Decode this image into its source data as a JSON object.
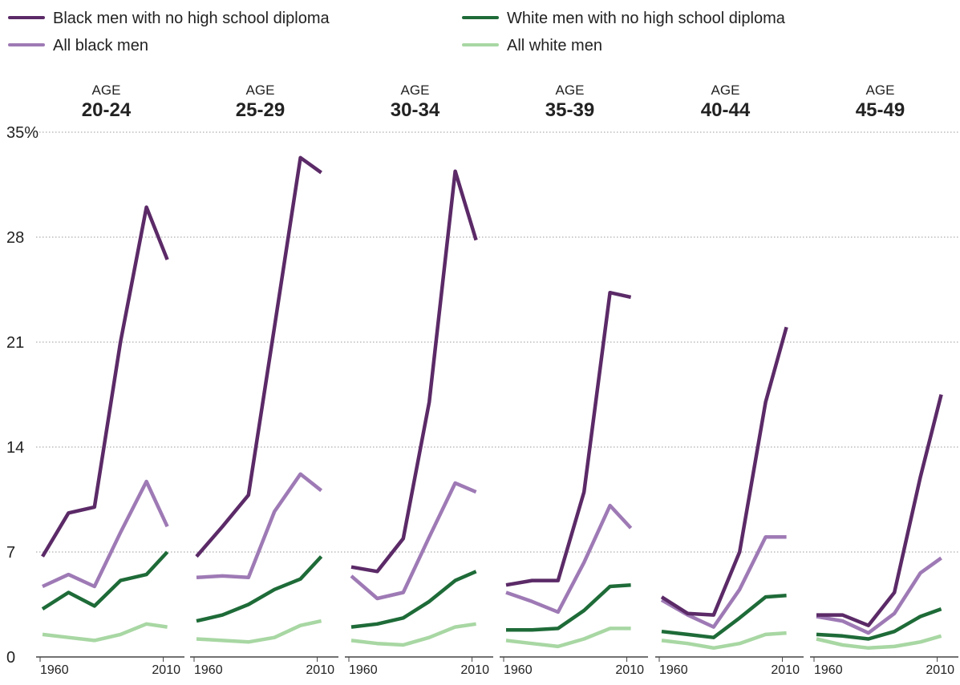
{
  "chart_data": {
    "type": "line",
    "legend": [
      {
        "label": "Black men with no high school diploma",
        "color": "#5b2a67"
      },
      {
        "label": "White men with no high school diploma",
        "color": "#1e6b38"
      },
      {
        "label": "All black men",
        "color": "#9e7ab5"
      },
      {
        "label": "All white men",
        "color": "#a8d7a3"
      }
    ],
    "legend_placement": "top",
    "y_ticks": [
      "35%",
      "28",
      "21",
      "14",
      "7",
      "0"
    ],
    "ylim": [
      0,
      35
    ],
    "xlim": [
      1960,
      2014
    ],
    "x_tick_labels": [
      "1960",
      "2010"
    ],
    "x": [
      1960,
      1970,
      1980,
      1990,
      2000,
      2008
    ],
    "grid": true,
    "age_label": "AGE",
    "panels": [
      {
        "age_range": "20-24",
        "series": [
          {
            "name": "Black men with no high school diploma",
            "color": "#5b2a67",
            "values": [
              6.7,
              9.6,
              10.0,
              21.0,
              30.0,
              26.5
            ]
          },
          {
            "name": "All black men",
            "color": "#9e7ab5",
            "values": [
              4.7,
              5.5,
              4.7,
              8.3,
              11.7,
              8.7
            ]
          },
          {
            "name": "White men with no high school diploma",
            "color": "#1e6b38",
            "values": [
              3.2,
              4.3,
              3.4,
              5.1,
              5.5,
              7.0
            ]
          },
          {
            "name": "All white men",
            "color": "#a8d7a3",
            "values": [
              1.5,
              1.3,
              1.1,
              1.5,
              2.2,
              2.0
            ]
          }
        ]
      },
      {
        "age_range": "25-29",
        "series": [
          {
            "name": "Black men with no high school diploma",
            "color": "#5b2a67",
            "values": [
              6.7,
              8.7,
              10.8,
              22.0,
              33.3,
              32.3
            ]
          },
          {
            "name": "All black men",
            "color": "#9e7ab5",
            "values": [
              5.3,
              5.4,
              5.3,
              9.7,
              12.2,
              11.1
            ]
          },
          {
            "name": "White men with no high school diploma",
            "color": "#1e6b38",
            "values": [
              2.4,
              2.8,
              3.5,
              4.5,
              5.2,
              6.7
            ]
          },
          {
            "name": "All white men",
            "color": "#a8d7a3",
            "values": [
              1.2,
              1.1,
              1.0,
              1.3,
              2.1,
              2.4
            ]
          }
        ]
      },
      {
        "age_range": "30-34",
        "series": [
          {
            "name": "Black men with no high school diploma",
            "color": "#5b2a67",
            "values": [
              6.0,
              5.7,
              7.9,
              17.0,
              32.4,
              27.8
            ]
          },
          {
            "name": "All black men",
            "color": "#9e7ab5",
            "values": [
              5.4,
              3.9,
              4.3,
              8.0,
              11.6,
              11.0
            ]
          },
          {
            "name": "White men with no high school diploma",
            "color": "#1e6b38",
            "values": [
              2.0,
              2.2,
              2.6,
              3.7,
              5.1,
              5.7
            ]
          },
          {
            "name": "All white men",
            "color": "#a8d7a3",
            "values": [
              1.1,
              0.9,
              0.8,
              1.3,
              2.0,
              2.2
            ]
          }
        ]
      },
      {
        "age_range": "35-39",
        "series": [
          {
            "name": "Black men with no high school diploma",
            "color": "#5b2a67",
            "values": [
              4.8,
              5.1,
              5.1,
              11.0,
              24.3,
              24.0
            ]
          },
          {
            "name": "All black men",
            "color": "#9e7ab5",
            "values": [
              4.3,
              3.7,
              3.0,
              6.3,
              10.1,
              8.6
            ]
          },
          {
            "name": "White men with no high school diploma",
            "color": "#1e6b38",
            "values": [
              1.8,
              1.8,
              1.9,
              3.1,
              4.7,
              4.8
            ]
          },
          {
            "name": "All white men",
            "color": "#a8d7a3",
            "values": [
              1.1,
              0.9,
              0.7,
              1.2,
              1.9,
              1.9
            ]
          }
        ]
      },
      {
        "age_range": "40-44",
        "series": [
          {
            "name": "Black men with no high school diploma",
            "color": "#5b2a67",
            "values": [
              4.0,
              2.9,
              2.8,
              7.0,
              17.0,
              22.0
            ]
          },
          {
            "name": "All black men",
            "color": "#9e7ab5",
            "values": [
              3.8,
              2.8,
              2.0,
              4.5,
              8.0,
              8.0
            ]
          },
          {
            "name": "White men with no high school diploma",
            "color": "#1e6b38",
            "values": [
              1.7,
              1.5,
              1.3,
              2.6,
              4.0,
              4.1
            ]
          },
          {
            "name": "All white men",
            "color": "#a8d7a3",
            "values": [
              1.1,
              0.9,
              0.6,
              0.9,
              1.5,
              1.6
            ]
          }
        ]
      },
      {
        "age_range": "45-49",
        "series": [
          {
            "name": "Black men with no high school diploma",
            "color": "#5b2a67",
            "values": [
              2.8,
              2.8,
              2.1,
              4.3,
              12.0,
              17.5
            ]
          },
          {
            "name": "All black men",
            "color": "#9e7ab5",
            "values": [
              2.7,
              2.4,
              1.6,
              2.9,
              5.6,
              6.6
            ]
          },
          {
            "name": "White men with no high school diploma",
            "color": "#1e6b38",
            "values": [
              1.5,
              1.4,
              1.2,
              1.7,
              2.7,
              3.2
            ]
          },
          {
            "name": "All white men",
            "color": "#a8d7a3",
            "values": [
              1.2,
              0.8,
              0.6,
              0.7,
              1.0,
              1.4
            ]
          }
        ]
      }
    ]
  }
}
